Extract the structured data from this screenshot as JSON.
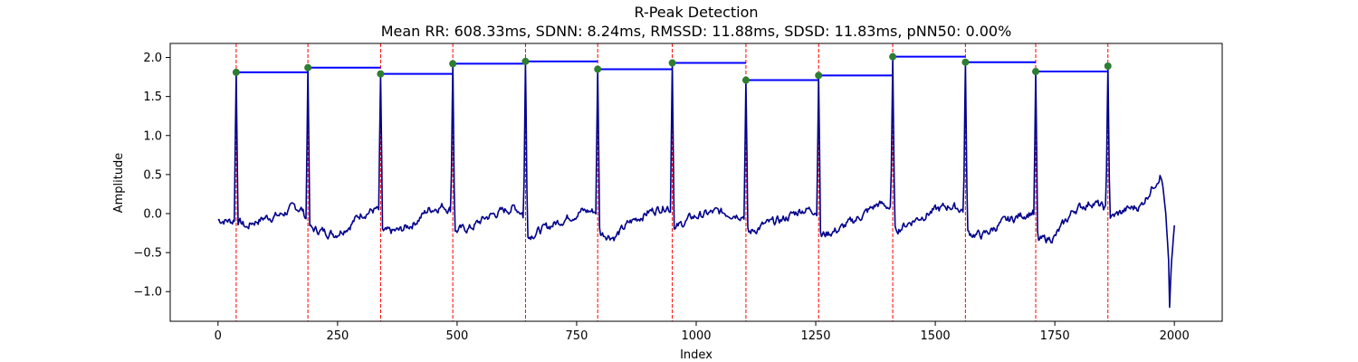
{
  "chart_data": {
    "type": "line",
    "title": "R-Peak Detection",
    "subtitle": "Mean RR: 608.33ms, SDNN: 8.24ms, RMSSD: 11.88ms, SDSD: 11.83ms, pNN50: 0.00%",
    "xlabel": "Index",
    "ylabel": "Amplitude",
    "xlim": [
      -100,
      2100
    ],
    "ylim": [
      -1.38,
      2.18
    ],
    "x_ticks": [
      0,
      250,
      500,
      750,
      1000,
      1250,
      1500,
      1750,
      2000
    ],
    "y_ticks": [
      -1.0,
      -0.5,
      0.0,
      0.5,
      1.0,
      1.5,
      2.0
    ],
    "x_tick_labels": [
      "0",
      "250",
      "500",
      "750",
      "1000",
      "1250",
      "1500",
      "1750",
      "2000"
    ],
    "y_tick_labels": [
      "−1.0",
      "−0.5",
      "0.0",
      "0.5",
      "1.0",
      "1.5",
      "2.0"
    ],
    "grid": false,
    "colors": {
      "signal": "#00008b",
      "peak_lines": "#ff0000",
      "rr_segments": "#0000ff",
      "peak_markers": "#2e7d32"
    },
    "signal": {
      "baseline_points": [
        [
          0,
          -0.08
        ],
        [
          20,
          -0.09
        ],
        [
          30,
          -0.1
        ],
        [
          36,
          -0.05
        ],
        [
          60,
          -0.18
        ],
        [
          70,
          -0.12
        ],
        [
          100,
          -0.05
        ],
        [
          130,
          -0.02
        ],
        [
          160,
          0.08
        ],
        [
          175,
          0.06
        ],
        [
          195,
          -0.2
        ],
        [
          215,
          -0.22
        ],
        [
          245,
          -0.26
        ],
        [
          275,
          -0.15
        ],
        [
          300,
          0.0
        ],
        [
          330,
          0.05
        ],
        [
          338,
          0.02
        ],
        [
          345,
          -0.25
        ],
        [
          380,
          -0.22
        ],
        [
          410,
          -0.12
        ],
        [
          440,
          0.05
        ],
        [
          470,
          0.1
        ],
        [
          488,
          0.05
        ],
        [
          495,
          -0.22
        ],
        [
          530,
          -0.18
        ],
        [
          560,
          -0.05
        ],
        [
          590,
          0.02
        ],
        [
          620,
          0.08
        ],
        [
          636,
          0.02
        ],
        [
          650,
          -0.28
        ],
        [
          680,
          -0.2
        ],
        [
          720,
          -0.08
        ],
        [
          760,
          0.03
        ],
        [
          790,
          0.03
        ],
        [
          800,
          -0.25
        ],
        [
          830,
          -0.3
        ],
        [
          860,
          -0.12
        ],
        [
          900,
          0.02
        ],
        [
          940,
          0.1
        ],
        [
          948,
          0.03
        ],
        [
          955,
          -0.2
        ],
        [
          990,
          -0.05
        ],
        [
          1040,
          0.02
        ],
        [
          1080,
          0.0
        ],
        [
          1100,
          -0.02
        ],
        [
          1110,
          -0.25
        ],
        [
          1140,
          -0.15
        ],
        [
          1180,
          -0.08
        ],
        [
          1220,
          0.05
        ],
        [
          1250,
          0.05
        ],
        [
          1262,
          -0.28
        ],
        [
          1300,
          -0.2
        ],
        [
          1340,
          -0.05
        ],
        [
          1380,
          0.12
        ],
        [
          1400,
          0.1
        ],
        [
          1408,
          0.05
        ],
        [
          1416,
          -0.22
        ],
        [
          1450,
          -0.1
        ],
        [
          1490,
          0.02
        ],
        [
          1530,
          0.1
        ],
        [
          1558,
          0.05
        ],
        [
          1568,
          -0.25
        ],
        [
          1600,
          -0.28
        ],
        [
          1640,
          -0.12
        ],
        [
          1680,
          -0.02
        ],
        [
          1705,
          0.02
        ],
        [
          1716,
          -0.35
        ],
        [
          1750,
          -0.3
        ],
        [
          1790,
          0.05
        ],
        [
          1830,
          0.15
        ],
        [
          1858,
          0.05
        ],
        [
          1868,
          -0.05
        ],
        [
          1900,
          0.05
        ],
        [
          1930,
          0.1
        ],
        [
          1955,
          0.35
        ],
        [
          1970,
          0.5
        ],
        [
          1975,
          0.4
        ],
        [
          1982,
          0.0
        ],
        [
          1988,
          -0.6
        ],
        [
          1990,
          -1.2
        ],
        [
          1993,
          -0.7
        ],
        [
          2000,
          -0.15
        ]
      ]
    },
    "r_peaks": [
      {
        "x": 38,
        "y": 1.81
      },
      {
        "x": 188,
        "y": 1.87
      },
      {
        "x": 340,
        "y": 1.79
      },
      {
        "x": 491,
        "y": 1.92
      },
      {
        "x": 643,
        "y": 1.95
      },
      {
        "x": 794,
        "y": 1.85
      },
      {
        "x": 950,
        "y": 1.93
      },
      {
        "x": 1104,
        "y": 1.71
      },
      {
        "x": 1256,
        "y": 1.77
      },
      {
        "x": 1411,
        "y": 2.01
      },
      {
        "x": 1563,
        "y": 1.94
      },
      {
        "x": 1710,
        "y": 1.82
      },
      {
        "x": 1861,
        "y": 1.89
      }
    ],
    "legend": "none"
  }
}
